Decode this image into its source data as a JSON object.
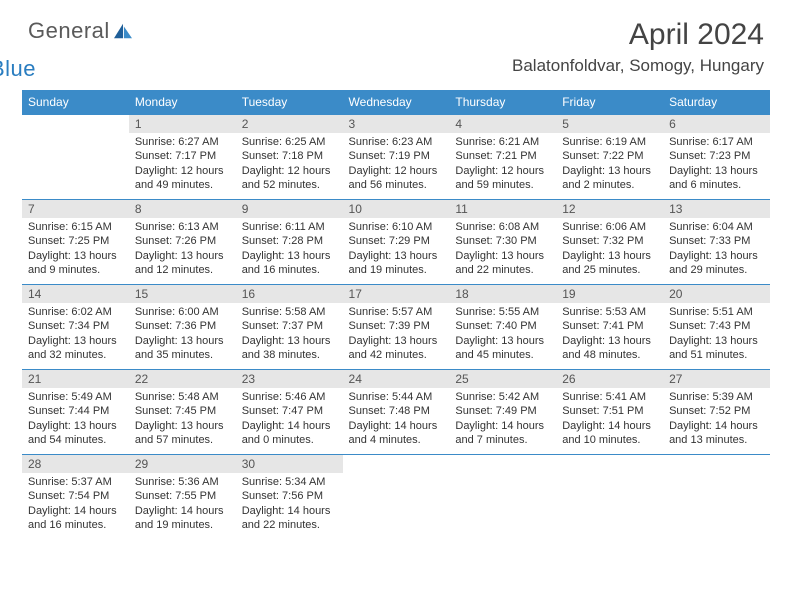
{
  "brand": {
    "general": "General",
    "blue": "Blue"
  },
  "title": "April 2024",
  "location": "Balatonfoldvar, Somogy, Hungary",
  "colors": {
    "header_bg": "#3b8bc8",
    "header_text": "#ffffff",
    "daynum_bg": "#e6e6e6",
    "text": "#333333",
    "row_border": "#3b8bc8",
    "brand_blue": "#2a7dc0",
    "brand_grey": "#5a5a5a"
  },
  "weekdays": [
    "Sunday",
    "Monday",
    "Tuesday",
    "Wednesday",
    "Thursday",
    "Friday",
    "Saturday"
  ],
  "weeks": [
    [
      {
        "n": "",
        "lines": []
      },
      {
        "n": "1",
        "lines": [
          "Sunrise: 6:27 AM",
          "Sunset: 7:17 PM",
          "Daylight: 12 hours",
          "and 49 minutes."
        ]
      },
      {
        "n": "2",
        "lines": [
          "Sunrise: 6:25 AM",
          "Sunset: 7:18 PM",
          "Daylight: 12 hours",
          "and 52 minutes."
        ]
      },
      {
        "n": "3",
        "lines": [
          "Sunrise: 6:23 AM",
          "Sunset: 7:19 PM",
          "Daylight: 12 hours",
          "and 56 minutes."
        ]
      },
      {
        "n": "4",
        "lines": [
          "Sunrise: 6:21 AM",
          "Sunset: 7:21 PM",
          "Daylight: 12 hours",
          "and 59 minutes."
        ]
      },
      {
        "n": "5",
        "lines": [
          "Sunrise: 6:19 AM",
          "Sunset: 7:22 PM",
          "Daylight: 13 hours",
          "and 2 minutes."
        ]
      },
      {
        "n": "6",
        "lines": [
          "Sunrise: 6:17 AM",
          "Sunset: 7:23 PM",
          "Daylight: 13 hours",
          "and 6 minutes."
        ]
      }
    ],
    [
      {
        "n": "7",
        "lines": [
          "Sunrise: 6:15 AM",
          "Sunset: 7:25 PM",
          "Daylight: 13 hours",
          "and 9 minutes."
        ]
      },
      {
        "n": "8",
        "lines": [
          "Sunrise: 6:13 AM",
          "Sunset: 7:26 PM",
          "Daylight: 13 hours",
          "and 12 minutes."
        ]
      },
      {
        "n": "9",
        "lines": [
          "Sunrise: 6:11 AM",
          "Sunset: 7:28 PM",
          "Daylight: 13 hours",
          "and 16 minutes."
        ]
      },
      {
        "n": "10",
        "lines": [
          "Sunrise: 6:10 AM",
          "Sunset: 7:29 PM",
          "Daylight: 13 hours",
          "and 19 minutes."
        ]
      },
      {
        "n": "11",
        "lines": [
          "Sunrise: 6:08 AM",
          "Sunset: 7:30 PM",
          "Daylight: 13 hours",
          "and 22 minutes."
        ]
      },
      {
        "n": "12",
        "lines": [
          "Sunrise: 6:06 AM",
          "Sunset: 7:32 PM",
          "Daylight: 13 hours",
          "and 25 minutes."
        ]
      },
      {
        "n": "13",
        "lines": [
          "Sunrise: 6:04 AM",
          "Sunset: 7:33 PM",
          "Daylight: 13 hours",
          "and 29 minutes."
        ]
      }
    ],
    [
      {
        "n": "14",
        "lines": [
          "Sunrise: 6:02 AM",
          "Sunset: 7:34 PM",
          "Daylight: 13 hours",
          "and 32 minutes."
        ]
      },
      {
        "n": "15",
        "lines": [
          "Sunrise: 6:00 AM",
          "Sunset: 7:36 PM",
          "Daylight: 13 hours",
          "and 35 minutes."
        ]
      },
      {
        "n": "16",
        "lines": [
          "Sunrise: 5:58 AM",
          "Sunset: 7:37 PM",
          "Daylight: 13 hours",
          "and 38 minutes."
        ]
      },
      {
        "n": "17",
        "lines": [
          "Sunrise: 5:57 AM",
          "Sunset: 7:39 PM",
          "Daylight: 13 hours",
          "and 42 minutes."
        ]
      },
      {
        "n": "18",
        "lines": [
          "Sunrise: 5:55 AM",
          "Sunset: 7:40 PM",
          "Daylight: 13 hours",
          "and 45 minutes."
        ]
      },
      {
        "n": "19",
        "lines": [
          "Sunrise: 5:53 AM",
          "Sunset: 7:41 PM",
          "Daylight: 13 hours",
          "and 48 minutes."
        ]
      },
      {
        "n": "20",
        "lines": [
          "Sunrise: 5:51 AM",
          "Sunset: 7:43 PM",
          "Daylight: 13 hours",
          "and 51 minutes."
        ]
      }
    ],
    [
      {
        "n": "21",
        "lines": [
          "Sunrise: 5:49 AM",
          "Sunset: 7:44 PM",
          "Daylight: 13 hours",
          "and 54 minutes."
        ]
      },
      {
        "n": "22",
        "lines": [
          "Sunrise: 5:48 AM",
          "Sunset: 7:45 PM",
          "Daylight: 13 hours",
          "and 57 minutes."
        ]
      },
      {
        "n": "23",
        "lines": [
          "Sunrise: 5:46 AM",
          "Sunset: 7:47 PM",
          "Daylight: 14 hours",
          "and 0 minutes."
        ]
      },
      {
        "n": "24",
        "lines": [
          "Sunrise: 5:44 AM",
          "Sunset: 7:48 PM",
          "Daylight: 14 hours",
          "and 4 minutes."
        ]
      },
      {
        "n": "25",
        "lines": [
          "Sunrise: 5:42 AM",
          "Sunset: 7:49 PM",
          "Daylight: 14 hours",
          "and 7 minutes."
        ]
      },
      {
        "n": "26",
        "lines": [
          "Sunrise: 5:41 AM",
          "Sunset: 7:51 PM",
          "Daylight: 14 hours",
          "and 10 minutes."
        ]
      },
      {
        "n": "27",
        "lines": [
          "Sunrise: 5:39 AM",
          "Sunset: 7:52 PM",
          "Daylight: 14 hours",
          "and 13 minutes."
        ]
      }
    ],
    [
      {
        "n": "28",
        "lines": [
          "Sunrise: 5:37 AM",
          "Sunset: 7:54 PM",
          "Daylight: 14 hours",
          "and 16 minutes."
        ]
      },
      {
        "n": "29",
        "lines": [
          "Sunrise: 5:36 AM",
          "Sunset: 7:55 PM",
          "Daylight: 14 hours",
          "and 19 minutes."
        ]
      },
      {
        "n": "30",
        "lines": [
          "Sunrise: 5:34 AM",
          "Sunset: 7:56 PM",
          "Daylight: 14 hours",
          "and 22 minutes."
        ]
      },
      {
        "n": "",
        "lines": []
      },
      {
        "n": "",
        "lines": []
      },
      {
        "n": "",
        "lines": []
      },
      {
        "n": "",
        "lines": []
      }
    ]
  ]
}
